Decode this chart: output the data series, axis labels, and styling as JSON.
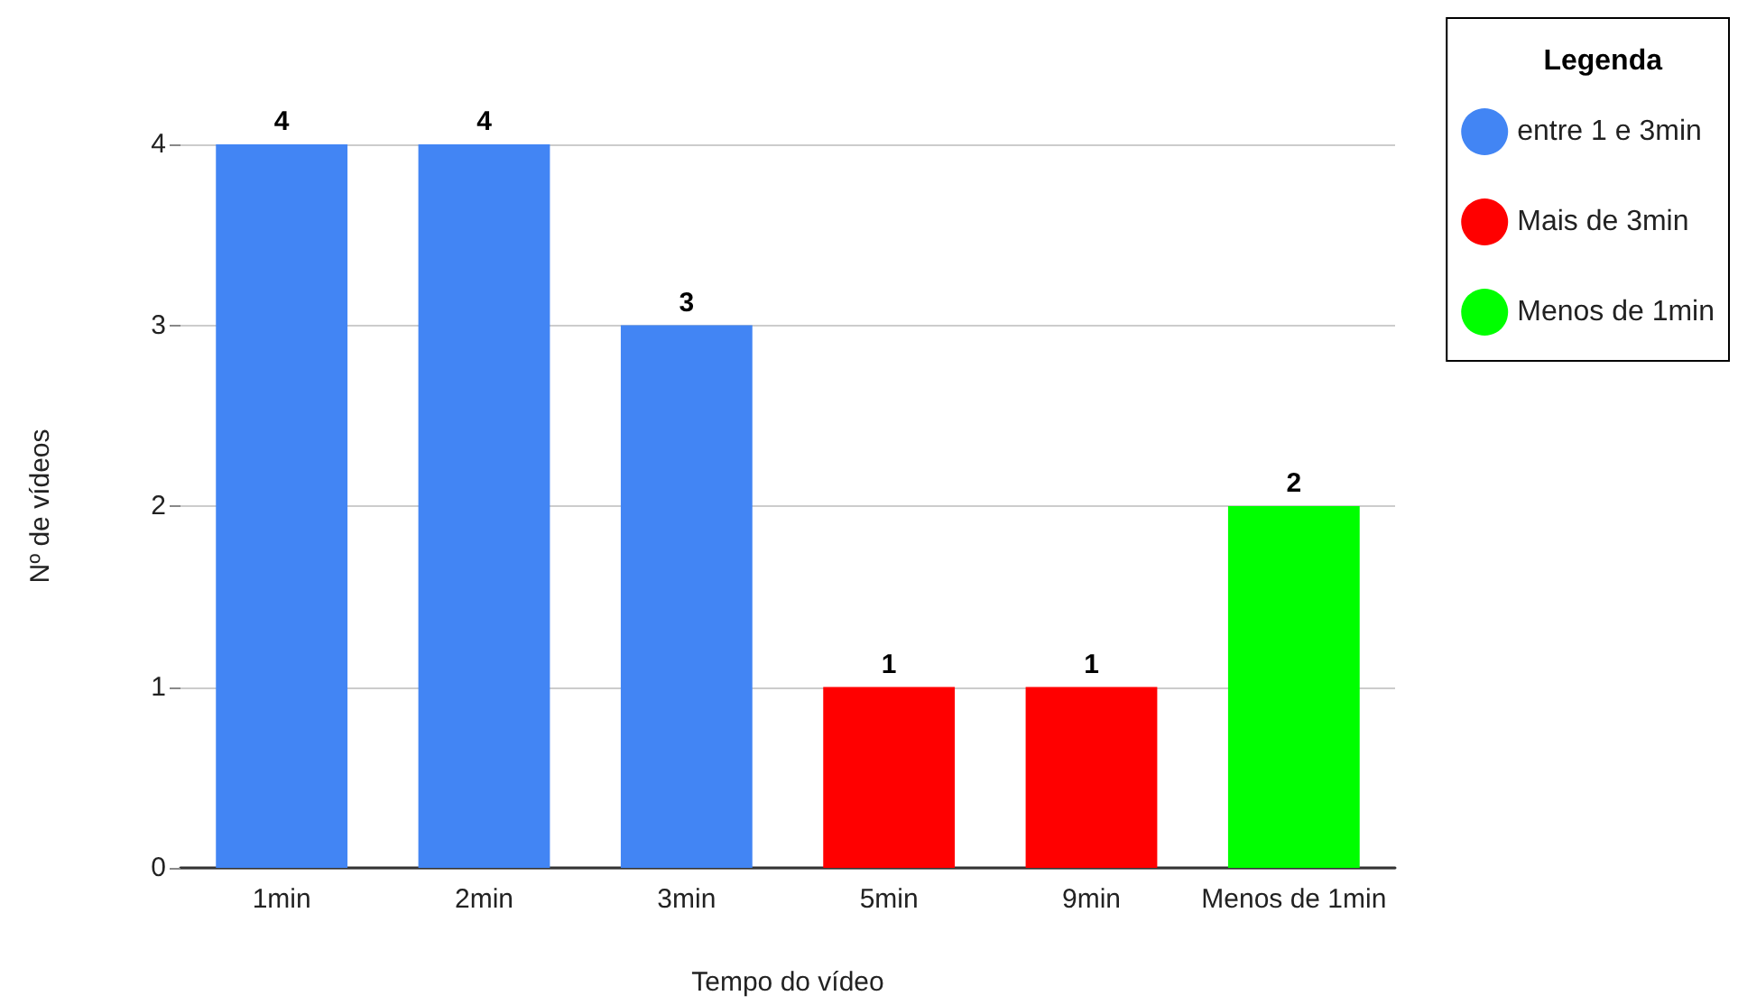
{
  "chart_data": {
    "type": "bar",
    "xlabel": "Tempo do vídeo",
    "ylabel": "Nº de vídeos",
    "legend_title": "Legenda",
    "categories": [
      "1min",
      "2min",
      "3min",
      "5min",
      "9min",
      "Menos de 1min"
    ],
    "series": [
      {
        "name": "entre 1 e 3min",
        "color": "#4285f4",
        "values": [
          4,
          4,
          3,
          null,
          null,
          null
        ]
      },
      {
        "name": "Mais de 3min",
        "color": "#ff0000",
        "values": [
          null,
          null,
          null,
          1,
          1,
          null
        ]
      },
      {
        "name": "Menos de 1min",
        "color": "#00ff00",
        "values": [
          null,
          null,
          null,
          null,
          null,
          2
        ]
      }
    ],
    "ylim": [
      0,
      4
    ],
    "yticks": [
      0,
      1,
      2,
      3,
      4
    ],
    "grid": "y",
    "legend": "top right",
    "data_labels": true
  }
}
